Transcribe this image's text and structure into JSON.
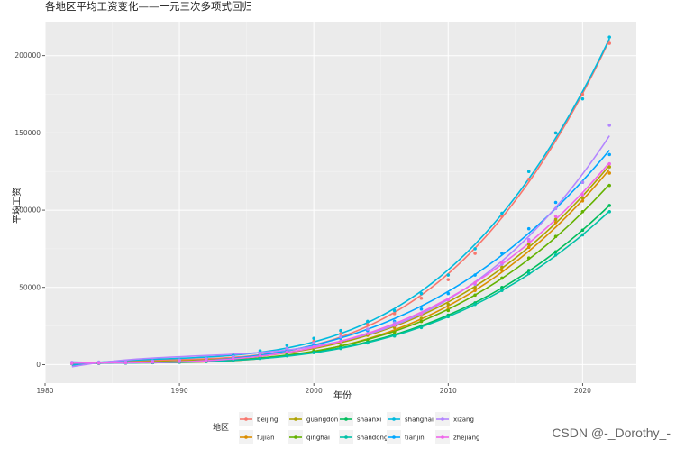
{
  "watermark": "CSDN @-_Dorothy_-",
  "chart_data": {
    "type": "scatter",
    "title": "各地区平均工资变化——一元三次多项式回归",
    "xlabel": "年份",
    "ylabel": "平均工资",
    "xlim": [
      1980,
      2024
    ],
    "ylim": [
      -12000,
      222000
    ],
    "x_ticks": [
      1980,
      1990,
      2000,
      2010,
      2020
    ],
    "y_ticks": [
      0,
      50000,
      100000,
      150000,
      200000
    ],
    "x_tick_labels": [
      "1980",
      "1990",
      "2000",
      "2010",
      "2020"
    ],
    "y_tick_labels": [
      "0",
      "50000",
      "100000",
      "150000",
      "200000"
    ],
    "grid": true,
    "background": "#ebebeb",
    "legend_title": "地区",
    "legend_position": "bottom",
    "fit": "cubic polynomial (one-variable)",
    "years": [
      1982,
      1984,
      1986,
      1988,
      1990,
      1992,
      1994,
      1996,
      1998,
      2000,
      2002,
      2004,
      2006,
      2008,
      2010,
      2012,
      2014,
      2016,
      2018,
      2020,
      2022
    ],
    "series": [
      {
        "name": "beijing",
        "color": "#f8766d",
        "values": [
          1000,
          1150,
          1350,
          1750,
          2150,
          2900,
          4400,
          7000,
          10500,
          15000,
          20000,
          26000,
          33000,
          43000,
          55000,
          72000,
          96000,
          120000,
          150000,
          175000,
          208000
        ]
      },
      {
        "name": "fujian",
        "color": "#db8e00",
        "values": [
          750,
          900,
          1050,
          1300,
          1600,
          2100,
          3000,
          4500,
          6500,
          9000,
          12000,
          16000,
          21000,
          28000,
          36000,
          48000,
          61000,
          76000,
          92000,
          106000,
          124000
        ]
      },
      {
        "name": "guangdon",
        "color": "#aea200",
        "values": [
          900,
          1050,
          1300,
          1700,
          2100,
          2800,
          4000,
          6000,
          8500,
          11500,
          15000,
          19000,
          24000,
          30000,
          39000,
          50000,
          63000,
          78000,
          94000,
          108000,
          128000
        ]
      },
      {
        "name": "qinghai",
        "color": "#64b200",
        "values": [
          800,
          950,
          1100,
          1400,
          1750,
          2300,
          3200,
          4700,
          6700,
          9000,
          12000,
          16000,
          21000,
          28000,
          35000,
          45000,
          56000,
          69000,
          83000,
          99000,
          116000
        ]
      },
      {
        "name": "shaanxi",
        "color": "#00bd5c",
        "values": [
          700,
          850,
          1000,
          1300,
          1600,
          2100,
          2900,
          4200,
          6000,
          8000,
          11000,
          14500,
          19000,
          25000,
          32000,
          40000,
          50000,
          61000,
          73000,
          87000,
          103000
        ]
      },
      {
        "name": "shandong",
        "color": "#00c1a7",
        "values": [
          650,
          800,
          950,
          1200,
          1500,
          2000,
          2800,
          4000,
          5700,
          7800,
          10500,
          14000,
          18500,
          24000,
          31000,
          39000,
          48000,
          59000,
          71000,
          84000,
          99000
        ]
      },
      {
        "name": "shanghai",
        "color": "#00bade",
        "values": [
          1250,
          1400,
          1650,
          2100,
          2800,
          3900,
          6000,
          9000,
          12500,
          17000,
          22000,
          28000,
          35000,
          46000,
          58000,
          75000,
          98000,
          125000,
          150000,
          172000,
          212000
        ]
      },
      {
        "name": "tianjin",
        "color": "#00a6ff",
        "values": [
          1000,
          1150,
          1350,
          1750,
          2200,
          3000,
          4500,
          6800,
          9500,
          13000,
          17000,
          22000,
          28000,
          36000,
          46000,
          58000,
          72000,
          88000,
          105000,
          118000,
          136000
        ]
      },
      {
        "name": "xizang",
        "color": "#b385ff",
        "values": [
          1500,
          1650,
          1850,
          2400,
          3000,
          3800,
          5200,
          7500,
          10500,
          14000,
          18000,
          23000,
          27000,
          33000,
          42000,
          52000,
          65000,
          81000,
          101000,
          118000,
          155000
        ]
      },
      {
        "name": "zhejiang",
        "color": "#ef67eb",
        "values": [
          800,
          950,
          1150,
          1550,
          2000,
          2700,
          3900,
          5800,
          8200,
          11500,
          15000,
          20000,
          25500,
          33000,
          42000,
          53000,
          66000,
          80000,
          96000,
          110000,
          130000
        ]
      }
    ]
  }
}
